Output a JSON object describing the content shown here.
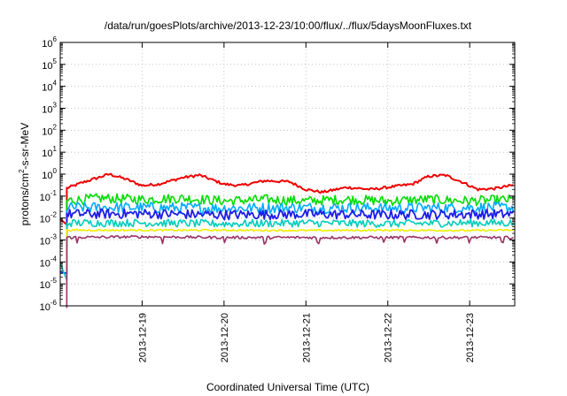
{
  "chart_data": {
    "type": "line",
    "title": "/data/run/goesPlots/archive/2013-12-23/10:00/flux/../flux/5daysMoonFluxes.txt",
    "xlabel": "Coordinated Universal Time (UTC)",
    "ylabel": {
      "prefix": "protons/cm",
      "sup": "2",
      "suffix": "-s-sr-MeV"
    },
    "yscale": "log",
    "ylim": [
      1e-06,
      1000000.0
    ],
    "xlim": [
      0,
      5.55
    ],
    "grid": true,
    "legend": "none",
    "yticks": [
      {
        "base": "10",
        "exp": "-6",
        "value": 1e-06
      },
      {
        "base": "10",
        "exp": "-5",
        "value": 1e-05
      },
      {
        "base": "10",
        "exp": "-4",
        "value": 0.0001
      },
      {
        "base": "10",
        "exp": "-3",
        "value": 0.001
      },
      {
        "base": "10",
        "exp": "-2",
        "value": 0.01
      },
      {
        "base": "10",
        "exp": "-1",
        "value": 0.1
      },
      {
        "base": "10",
        "exp": "0",
        "value": 1
      },
      {
        "base": "10",
        "exp": "1",
        "value": 10
      },
      {
        "base": "10",
        "exp": "2",
        "value": 100
      },
      {
        "base": "10",
        "exp": "3",
        "value": 1000
      },
      {
        "base": "10",
        "exp": "4",
        "value": 10000
      },
      {
        "base": "10",
        "exp": "5",
        "value": 100000
      },
      {
        "base": "10",
        "exp": "6",
        "value": 1000000
      }
    ],
    "xticks": [
      {
        "label": "2013-12-19",
        "value": 1.0
      },
      {
        "label": "2013-12-20",
        "value": 2.0
      },
      {
        "label": "2013-12-21",
        "value": 3.0
      },
      {
        "label": "2013-12-22",
        "value": 4.0
      },
      {
        "label": "2013-12-23",
        "value": 5.0
      }
    ],
    "series": [
      {
        "color": "#ee0000",
        "width": 2,
        "start": 0.08,
        "startValue": 0.005,
        "base": [
          [
            0,
            0.18
          ],
          [
            0.3,
            0.45
          ],
          [
            0.6,
            1.0
          ],
          [
            0.8,
            0.6
          ],
          [
            1.0,
            0.3
          ],
          [
            1.2,
            0.35
          ],
          [
            1.5,
            0.7
          ],
          [
            1.7,
            0.9
          ],
          [
            2.0,
            0.35
          ],
          [
            2.2,
            0.3
          ],
          [
            2.5,
            0.5
          ],
          [
            2.8,
            0.45
          ],
          [
            3.0,
            0.2
          ],
          [
            3.2,
            0.15
          ],
          [
            3.5,
            0.25
          ],
          [
            3.8,
            0.2
          ],
          [
            4.0,
            0.25
          ],
          [
            4.3,
            0.35
          ],
          [
            4.5,
            0.8
          ],
          [
            4.7,
            0.9
          ],
          [
            4.9,
            0.45
          ],
          [
            5.1,
            0.2
          ],
          [
            5.3,
            0.22
          ],
          [
            5.55,
            0.32
          ]
        ],
        "noise": 0.12,
        "pre": [
          [
            0,
            0.009
          ],
          [
            0.08,
            0.005
          ]
        ]
      },
      {
        "color": "#00dd00",
        "width": 1.6,
        "start": 0.08,
        "startValue": 0.0008,
        "base": [
          [
            0,
            0.06
          ],
          [
            0.5,
            0.08
          ],
          [
            1.0,
            0.07
          ],
          [
            1.5,
            0.08
          ],
          [
            2.0,
            0.06
          ],
          [
            2.5,
            0.07
          ],
          [
            3.0,
            0.06
          ],
          [
            3.5,
            0.07
          ],
          [
            4.0,
            0.06
          ],
          [
            4.5,
            0.07
          ],
          [
            5.0,
            0.06
          ],
          [
            5.55,
            0.07
          ]
        ],
        "noise": 0.45
      },
      {
        "color": "#00aaff",
        "width": 1.6,
        "start": 0.08,
        "startValue": 0.0004,
        "base": [
          [
            0,
            0.03
          ],
          [
            1.0,
            0.03
          ],
          [
            2.0,
            0.028
          ],
          [
            3.0,
            0.03
          ],
          [
            4.0,
            0.028
          ],
          [
            5.0,
            0.03
          ],
          [
            5.55,
            0.03
          ]
        ],
        "noise": 0.5
      },
      {
        "color": "#1d1de6",
        "width": 1.8,
        "start": 0.08,
        "startValue": 3e-05,
        "base": [
          [
            0,
            0.015
          ],
          [
            1.0,
            0.016
          ],
          [
            2.0,
            0.014
          ],
          [
            3.0,
            0.015
          ],
          [
            4.0,
            0.014
          ],
          [
            5.0,
            0.015
          ],
          [
            5.55,
            0.015
          ]
        ],
        "noise": 0.45,
        "pre": [
          [
            0,
            3.5e-05
          ],
          [
            0.08,
            3e-05
          ]
        ]
      },
      {
        "color": "#00ccbb",
        "width": 1.6,
        "start": 0.08,
        "startValue": 2e-06,
        "base": [
          [
            0,
            0.006
          ],
          [
            1.0,
            0.006
          ],
          [
            2.0,
            0.0055
          ],
          [
            3.0,
            0.006
          ],
          [
            4.0,
            0.0055
          ],
          [
            5.0,
            0.006
          ],
          [
            5.55,
            0.006
          ]
        ],
        "noise": 0.35,
        "pre": [
          [
            0,
            9e-05
          ],
          [
            0.08,
            1.5e-05
          ]
        ]
      },
      {
        "color": "#eeee00",
        "width": 1.6,
        "start": 0.08,
        "startValue": 5e-05,
        "base": [
          [
            0,
            0.0028
          ],
          [
            1.0,
            0.0028
          ],
          [
            2.0,
            0.0028
          ],
          [
            3.0,
            0.0027
          ],
          [
            4.0,
            0.0028
          ],
          [
            5.0,
            0.0027
          ],
          [
            5.55,
            0.0028
          ]
        ],
        "noise": 0.08
      },
      {
        "color": "#993366",
        "width": 1.6,
        "start": 0.08,
        "startValue": 8e-07,
        "base": [
          [
            0,
            0.0013
          ],
          [
            1.0,
            0.0014
          ],
          [
            2.0,
            0.0013
          ],
          [
            3.0,
            0.0013
          ],
          [
            4.0,
            0.0013
          ],
          [
            5.0,
            0.0013
          ],
          [
            5.55,
            0.0013
          ]
        ],
        "noise": 0.12,
        "dips": [
          0.2,
          1.25,
          2.0,
          2.5,
          3.15,
          3.95,
          4.2,
          4.6,
          5.0,
          5.4
        ]
      }
    ]
  }
}
